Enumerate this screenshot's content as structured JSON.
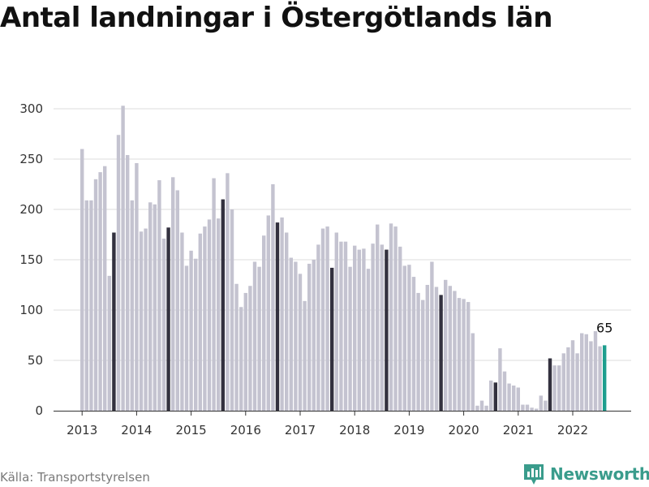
{
  "title": "Antal landningar i Östergötlands län",
  "source": "Källa: Transportstyrelsen",
  "brand": {
    "name": "Newsworthy",
    "icon": "newsworthy-logo-icon"
  },
  "colors": {
    "bar": "#c4c3d0",
    "highlight_bar": "#33313f",
    "last_bar": "#1e9e8e",
    "grid": "#dcdcdc",
    "brand": "#3a9c8c"
  },
  "chart_data": {
    "type": "bar",
    "title": "Antal landningar i Östergötlands län",
    "xlabel": "",
    "ylabel": "",
    "ylim": [
      0,
      300
    ],
    "yticks": [
      "0",
      "50",
      "100",
      "150",
      "200",
      "250",
      "300"
    ],
    "xticks": [
      "2013",
      "2014",
      "2015",
      "2016",
      "2017",
      "2018",
      "2019",
      "2020",
      "2021",
      "2022"
    ],
    "grid": true,
    "highlight_month": "August",
    "last_value_label": "65",
    "categories": [
      "2013-01",
      "2013-02",
      "2013-03",
      "2013-04",
      "2013-05",
      "2013-06",
      "2013-07",
      "2013-08",
      "2013-09",
      "2013-10",
      "2013-11",
      "2013-12",
      "2014-01",
      "2014-02",
      "2014-03",
      "2014-04",
      "2014-05",
      "2014-06",
      "2014-07",
      "2014-08",
      "2014-09",
      "2014-10",
      "2014-11",
      "2014-12",
      "2015-01",
      "2015-02",
      "2015-03",
      "2015-04",
      "2015-05",
      "2015-06",
      "2015-07",
      "2015-08",
      "2015-09",
      "2015-10",
      "2015-11",
      "2015-12",
      "2016-01",
      "2016-02",
      "2016-03",
      "2016-04",
      "2016-05",
      "2016-06",
      "2016-07",
      "2016-08",
      "2016-09",
      "2016-10",
      "2016-11",
      "2016-12",
      "2017-01",
      "2017-02",
      "2017-03",
      "2017-04",
      "2017-05",
      "2017-06",
      "2017-07",
      "2017-08",
      "2017-09",
      "2017-10",
      "2017-11",
      "2017-12",
      "2018-01",
      "2018-02",
      "2018-03",
      "2018-04",
      "2018-05",
      "2018-06",
      "2018-07",
      "2018-08",
      "2018-09",
      "2018-10",
      "2018-11",
      "2018-12",
      "2019-01",
      "2019-02",
      "2019-03",
      "2019-04",
      "2019-05",
      "2019-06",
      "2019-07",
      "2019-08",
      "2019-09",
      "2019-10",
      "2019-11",
      "2019-12",
      "2020-01",
      "2020-02",
      "2020-03",
      "2020-04",
      "2020-05",
      "2020-06",
      "2020-07",
      "2020-08",
      "2020-09",
      "2020-10",
      "2020-11",
      "2020-12",
      "2021-01",
      "2021-02",
      "2021-03",
      "2021-04",
      "2021-05",
      "2021-06",
      "2021-07",
      "2021-08",
      "2021-09",
      "2021-10",
      "2021-11",
      "2021-12",
      "2022-01",
      "2022-02",
      "2022-03",
      "2022-04",
      "2022-05",
      "2022-06",
      "2022-07",
      "2022-08"
    ],
    "values": [
      260,
      209,
      209,
      230,
      237,
      243,
      134,
      177,
      274,
      303,
      254,
      209,
      246,
      178,
      181,
      207,
      205,
      229,
      171,
      182,
      232,
      219,
      177,
      144,
      159,
      151,
      176,
      183,
      190,
      231,
      191,
      210,
      236,
      200,
      126,
      103,
      117,
      124,
      148,
      143,
      174,
      194,
      225,
      187,
      192,
      177,
      152,
      148,
      136,
      109,
      146,
      150,
      165,
      181,
      183,
      142,
      177,
      168,
      168,
      143,
      164,
      160,
      161,
      141,
      166,
      185,
      165,
      160,
      186,
      183,
      163,
      144,
      145,
      133,
      117,
      110,
      125,
      148,
      123,
      115,
      130,
      124,
      119,
      112,
      111,
      108,
      77,
      5,
      10,
      5,
      30,
      28,
      62,
      39,
      27,
      25,
      23,
      6,
      6,
      3,
      2,
      15,
      10,
      52,
      45,
      45,
      57,
      63,
      70,
      57,
      77,
      76,
      69,
      79,
      64,
      65
    ]
  }
}
